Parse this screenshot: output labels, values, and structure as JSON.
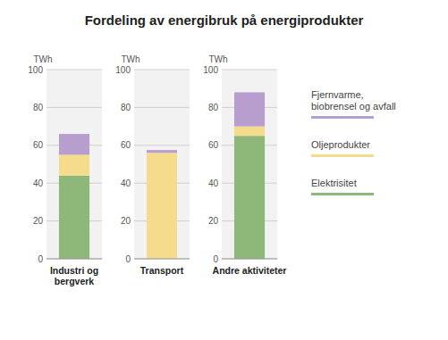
{
  "chart_data": {
    "type": "bar",
    "stacked": true,
    "title": "Fordeling av energibruk på energiprodukter",
    "ylabel": "TWh",
    "categories": [
      "Industri og\nbergverk",
      "Transport",
      "Andre aktiviteter"
    ],
    "series": [
      {
        "name": "Elektrisitet",
        "color": "#8db87a",
        "values": [
          44,
          0,
          65
        ]
      },
      {
        "name": "Oljeprodukter",
        "color": "#f5dc8c",
        "values": [
          11,
          56,
          5
        ]
      },
      {
        "name": "Fjernvarme,\nbiobrensel og avfall",
        "color": "#b89ece",
        "values": [
          11,
          1.5,
          18
        ]
      }
    ],
    "ylim": [
      0,
      100
    ],
    "yticks": [
      0,
      20,
      40,
      60,
      80,
      100
    ],
    "grid": true,
    "legend": "right"
  }
}
